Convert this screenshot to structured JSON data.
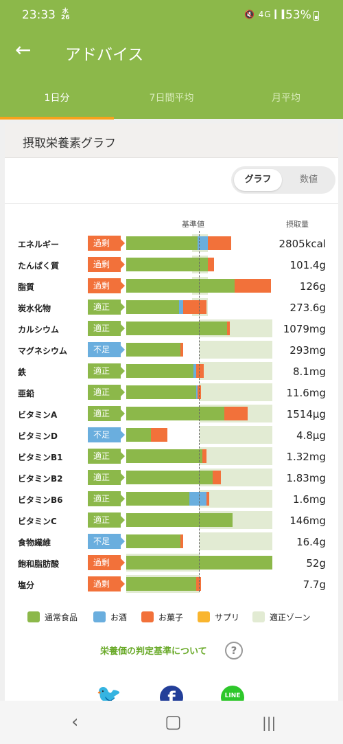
{
  "status": {
    "time": "23:33",
    "day": "水",
    "date": "26",
    "icons": "🔇 4G ▎▍",
    "battery": "53%"
  },
  "header": {
    "title": "アドバイス"
  },
  "tabs": [
    {
      "label": "1日分",
      "active": true
    },
    {
      "label": "7日間平均",
      "active": false
    },
    {
      "label": "月平均",
      "active": false
    }
  ],
  "card": {
    "title": "摂取栄養素グラフ"
  },
  "toggle": {
    "graph": "グラフ",
    "values": "数値"
  },
  "columns": {
    "standard": "基準値",
    "intake": "摂取量"
  },
  "colors": {
    "normal": "#8cb84a",
    "alcohol": "#6aaede",
    "sweets": "#f2713a",
    "supplement": "#f9b52e",
    "zone": "#e2ebd3"
  },
  "nutrients": [
    {
      "name": "エネルギー",
      "status": "過剰",
      "type": "over",
      "amount": "2805kcal",
      "zone": [
        0.45,
        0.56
      ],
      "parts": {
        "normal": 0.49,
        "alcohol": 0.07,
        "sweets": 0.16
      }
    },
    {
      "name": "たんぱく質",
      "status": "過剰",
      "type": "over",
      "amount": "101.4g",
      "zone": [
        0.45,
        0.56
      ],
      "parts": {
        "normal": 0.56,
        "alcohol": 0,
        "sweets": 0.04
      }
    },
    {
      "name": "脂質",
      "status": "過剰",
      "type": "over",
      "amount": "126g",
      "zone": [
        0.45,
        0.56
      ],
      "parts": {
        "normal": 0.74,
        "alcohol": 0,
        "sweets": 0.25
      }
    },
    {
      "name": "炭水化物",
      "status": "適正",
      "type": "ok",
      "amount": "273.6g",
      "zone": [
        0.45,
        0.56
      ],
      "parts": {
        "normal": 0.36,
        "alcohol": 0.03,
        "sweets": 0.16
      }
    },
    {
      "name": "カルシウム",
      "status": "適正",
      "type": "ok",
      "amount": "1079mg",
      "zone": [
        0.5,
        1.0
      ],
      "parts": {
        "normal": 0.69,
        "alcohol": 0,
        "sweets": 0.02
      }
    },
    {
      "name": "マグネシウム",
      "status": "不足",
      "type": "low",
      "amount": "293mg",
      "zone": [
        0.5,
        1.0
      ],
      "parts": {
        "normal": 0.37,
        "alcohol": 0,
        "sweets": 0.02
      }
    },
    {
      "name": "鉄",
      "status": "適正",
      "type": "ok",
      "amount": "8.1mg",
      "zone": [
        0.5,
        1.0
      ],
      "parts": {
        "normal": 0.46,
        "alcohol": 0.02,
        "sweets": 0.05
      }
    },
    {
      "name": "亜鉛",
      "status": "適正",
      "type": "ok",
      "amount": "11.6mg",
      "zone": [
        0.5,
        1.0
      ],
      "parts": {
        "normal": 0.48,
        "alcohol": 0.01,
        "sweets": 0.02
      }
    },
    {
      "name": "ビタミンA",
      "status": "適正",
      "type": "ok",
      "amount": "1514µg",
      "zone": [
        0.5,
        1.0
      ],
      "parts": {
        "normal": 0.67,
        "alcohol": 0,
        "sweets": 0.16
      }
    },
    {
      "name": "ビタミンD",
      "status": "不足",
      "type": "low",
      "amount": "4.8µg",
      "zone": [
        0.5,
        1.0
      ],
      "parts": {
        "normal": 0.17,
        "alcohol": 0,
        "sweets": 0.11
      }
    },
    {
      "name": "ビタミンB1",
      "status": "適正",
      "type": "ok",
      "amount": "1.32mg",
      "zone": [
        0.5,
        1.0
      ],
      "parts": {
        "normal": 0.52,
        "alcohol": 0,
        "sweets": 0.03
      }
    },
    {
      "name": "ビタミンB2",
      "status": "適正",
      "type": "ok",
      "amount": "1.83mg",
      "zone": [
        0.5,
        1.0
      ],
      "parts": {
        "normal": 0.59,
        "alcohol": 0,
        "sweets": 0.06
      }
    },
    {
      "name": "ビタミンB6",
      "status": "適正",
      "type": "ok",
      "amount": "1.6mg",
      "zone": [
        0.5,
        1.0
      ],
      "parts": {
        "normal": 0.43,
        "alcohol": 0.12,
        "sweets": 0.02
      }
    },
    {
      "name": "ビタミンC",
      "status": "適正",
      "type": "ok",
      "amount": "146mg",
      "zone": [
        0.5,
        1.0
      ],
      "parts": {
        "normal": 0.73,
        "alcohol": 0,
        "sweets": 0
      }
    },
    {
      "name": "食物繊維",
      "status": "不足",
      "type": "low",
      "amount": "16.4g",
      "zone": [
        0.5,
        1.0
      ],
      "parts": {
        "normal": 0.37,
        "alcohol": 0,
        "sweets": 0.02
      }
    },
    {
      "name": "飽和脂肪酸",
      "status": "過剰",
      "type": "over",
      "amount": "52g",
      "zone": [
        0,
        0.5
      ],
      "parts": {
        "normal": 1.0,
        "alcohol": 0,
        "sweets": 0
      }
    },
    {
      "name": "塩分",
      "status": "過剰",
      "type": "over",
      "amount": "7.7g",
      "zone": [
        0,
        0.5
      ],
      "parts": {
        "normal": 0.48,
        "alcohol": 0,
        "sweets": 0.03
      }
    }
  ],
  "legend": [
    {
      "label": "通常食品",
      "color": "#8cb84a"
    },
    {
      "label": "お酒",
      "color": "#6aaede"
    },
    {
      "label": "お菓子",
      "color": "#f2713a"
    },
    {
      "label": "サプリ",
      "color": "#f9b52e"
    },
    {
      "label": "適正ゾーン",
      "color": "#e2ebd3"
    }
  ],
  "link": {
    "text": "栄養価の判定基準について",
    "help": "?"
  },
  "social": {
    "line": "LINE"
  },
  "nav": {
    "back": "‹",
    "home": "▢",
    "recent": "|||"
  }
}
